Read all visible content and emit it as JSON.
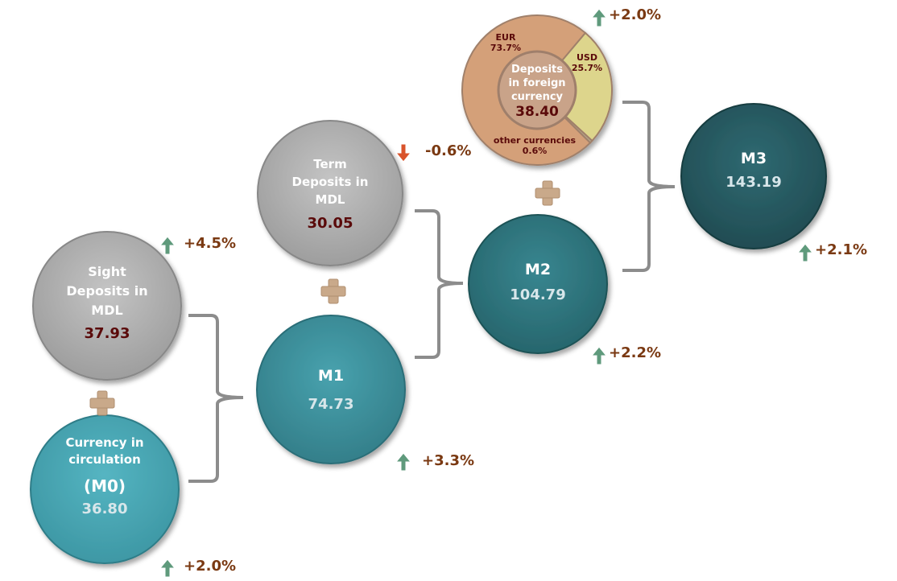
{
  "nodes": {
    "sight": {
      "label_lines": [
        "Sight",
        "Deposits in",
        "MDL"
      ],
      "value": "37.93",
      "change": "+4.5%",
      "direction": "up"
    },
    "currency": {
      "label_lines": [
        "Currency in",
        "circulation"
      ],
      "sublabel": "(M0)",
      "value": "36.80",
      "change": "+2.0%",
      "direction": "up"
    },
    "term": {
      "label_lines": [
        "Term",
        "Deposits in",
        "MDL"
      ],
      "value": "30.05",
      "change": "-0.6%",
      "direction": "down"
    },
    "m1": {
      "label": "M1",
      "value": "74.73",
      "change": "+3.3%",
      "direction": "up"
    },
    "m2": {
      "label": "M2",
      "value": "104.79",
      "change": "+2.2%",
      "direction": "up"
    },
    "m3": {
      "label": "M3",
      "value": "143.19",
      "change": "+2.1%",
      "direction": "up"
    },
    "foreign": {
      "label_lines": [
        "Deposits",
        "in foreign",
        "currency"
      ],
      "value": "38.40",
      "change": "+2.0%",
      "direction": "up",
      "slices": [
        {
          "name": "EUR",
          "pct": "73.7%",
          "share": 73.7,
          "color": "#d4a079"
        },
        {
          "name": "USD",
          "pct": "25.7%",
          "share": 25.7,
          "color": "#ddd58c"
        },
        {
          "name": "other currencies",
          "pct": "0.6%",
          "share": 0.6,
          "color": "#b7a98b"
        }
      ]
    }
  },
  "colors": {
    "gray": "#b4b4b4",
    "m0": "#4aaab7",
    "m1": "#3f97a3",
    "m2": "#2f7a82",
    "m3": "#295e66",
    "plus": "#c9a98a",
    "arrow_up": "#5f9a7c",
    "arrow_down": "#d9532b",
    "bracket": "#8c8c8c"
  }
}
